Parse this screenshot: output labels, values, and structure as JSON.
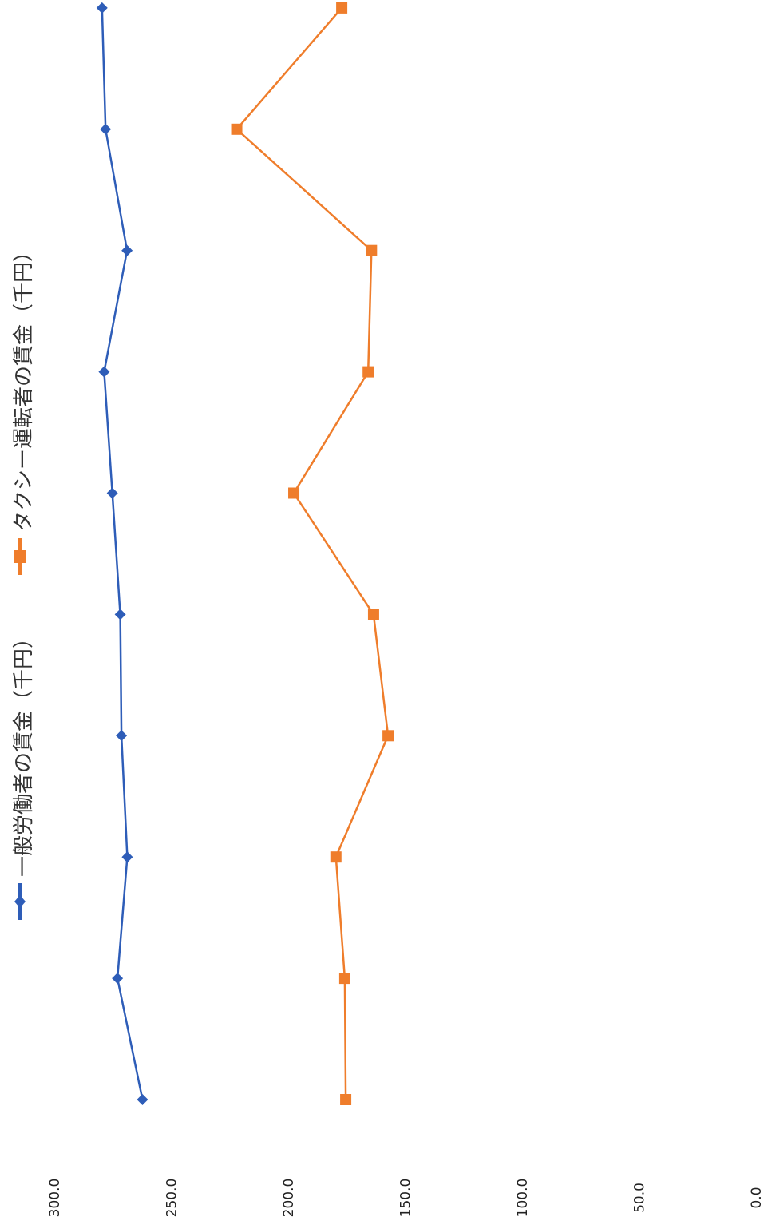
{
  "chart_data": {
    "type": "line",
    "title": "",
    "xlabel": "",
    "ylabel": "",
    "ylim": [
      0,
      300
    ],
    "y_ticks": [
      "0.0",
      "50.0",
      "100.0",
      "150.0",
      "200.0",
      "250.0",
      "300.0"
    ],
    "grid": false,
    "legend_position": "top",
    "rotation": "rotated 90 degrees clockwise",
    "series": [
      {
        "name": "一般労働者の賃金（千円）",
        "color": "#2e5db8",
        "marker": "diamond",
        "values": [
          262.3,
          273.0,
          268.8,
          271.3,
          271.8,
          275.2,
          278.7,
          268.9,
          278.1,
          279.6
        ]
      },
      {
        "name": "タクシー運転者の賃金（千円）",
        "color": "#ef7d2b",
        "marker": "square",
        "values": [
          175.4,
          175.8,
          179.6,
          157.3,
          163.5,
          197.6,
          165.8,
          164.4,
          222.0,
          177.1
        ]
      }
    ]
  }
}
